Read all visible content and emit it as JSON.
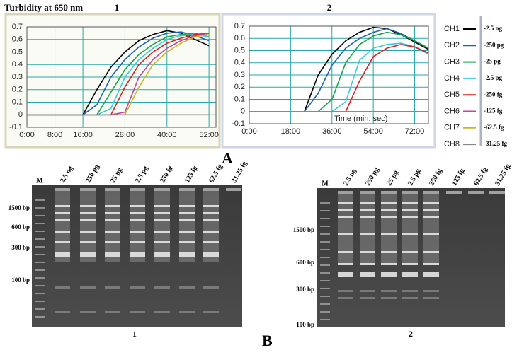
{
  "figure": {
    "heading": "Turbidity at 650 nm",
    "panel_a": "A",
    "panel_b": "B"
  },
  "chart_data": [
    {
      "type": "line",
      "title": "1",
      "grid": true,
      "x": [
        0,
        4,
        8,
        12,
        16,
        20,
        24,
        28,
        32,
        36,
        40,
        44,
        48,
        52
      ],
      "xlim": [
        0,
        54
      ],
      "xticks": [
        {
          "value": 0,
          "label": "0:00"
        },
        {
          "value": 8,
          "label": "8:00"
        },
        {
          "value": 16,
          "label": "16:00"
        },
        {
          "value": 28,
          "label": "28:00"
        },
        {
          "value": 40,
          "label": "40:00"
        },
        {
          "value": 52,
          "label": "52:00"
        }
      ],
      "ylim": [
        -0.1,
        0.7
      ],
      "yticks": [
        -0.1,
        0,
        0.1,
        0.2,
        0.3,
        0.4,
        0.5,
        0.6,
        0.7
      ],
      "series": [
        {
          "color": "#000000",
          "values": [
            0,
            0,
            0,
            0,
            0,
            0.2,
            0.38,
            0.5,
            0.59,
            0.64,
            0.67,
            0.65,
            0.6,
            0.55
          ]
        },
        {
          "color": "#1f5fb0",
          "values": [
            0,
            0,
            0,
            0,
            0,
            0.08,
            0.3,
            0.44,
            0.54,
            0.61,
            0.65,
            0.66,
            0.63,
            0.59
          ]
        },
        {
          "color": "#1aa34a",
          "values": [
            0,
            0,
            0,
            0,
            0,
            0,
            0.18,
            0.36,
            0.48,
            0.56,
            0.62,
            0.64,
            0.65,
            0.62
          ]
        },
        {
          "color": "#3cc8d8",
          "values": [
            0,
            0,
            0,
            0,
            0,
            0,
            0.05,
            0.3,
            0.44,
            0.53,
            0.6,
            0.63,
            0.64,
            0.62
          ]
        },
        {
          "color": "#d42020",
          "values": [
            0,
            0,
            0,
            0,
            0,
            0,
            0,
            0.22,
            0.4,
            0.5,
            0.57,
            0.61,
            0.64,
            0.65
          ]
        },
        {
          "color": "#c0479a",
          "values": [
            0,
            0,
            0,
            0,
            0,
            0,
            0,
            0.02,
            0.3,
            0.44,
            0.53,
            0.59,
            0.63,
            0.65
          ]
        },
        {
          "color": "#c8b820",
          "values": [
            0,
            0,
            0,
            0,
            0,
            0,
            0,
            0,
            0.22,
            0.4,
            0.5,
            0.57,
            0.62,
            0.64
          ]
        },
        {
          "color": "#888888",
          "values": [
            0,
            0,
            0,
            0,
            0,
            0,
            0,
            0,
            0,
            0,
            0,
            0,
            0,
            0
          ]
        }
      ]
    },
    {
      "type": "line",
      "title": "2",
      "annotation": "Time (min: sec)",
      "grid": true,
      "x": [
        0,
        6,
        12,
        18,
        24,
        30,
        36,
        42,
        48,
        54,
        60,
        66,
        72,
        78
      ],
      "xlim": [
        0,
        78
      ],
      "xticks": [
        {
          "value": 0,
          "label": "0:00"
        },
        {
          "value": 18,
          "label": "18:00"
        },
        {
          "value": 36,
          "label": "36:00"
        },
        {
          "value": 54,
          "label": "54:00"
        },
        {
          "value": 72,
          "label": "72:00"
        }
      ],
      "ylim": [
        -0.1,
        0.7
      ],
      "yticks": [
        -0.1,
        0,
        0.1,
        0.2,
        0.3,
        0.4,
        0.5,
        0.6,
        0.7
      ],
      "series": [
        {
          "name": "CH1",
          "label": "-2.5 ng",
          "color": "#000000",
          "values": [
            0,
            0,
            0,
            0,
            0,
            0.3,
            0.47,
            0.58,
            0.65,
            0.69,
            0.68,
            0.63,
            0.57,
            0.51
          ]
        },
        {
          "name": "CH2",
          "label": "-250 pg",
          "color": "#1f5fb0",
          "values": [
            0,
            0,
            0,
            0,
            0,
            0.15,
            0.38,
            0.52,
            0.6,
            0.65,
            0.68,
            0.64,
            0.58,
            0.52
          ]
        },
        {
          "name": "CH3",
          "label": "-25 pg",
          "color": "#1aa34a",
          "values": [
            0,
            0,
            0,
            0,
            0,
            0,
            0.1,
            0.4,
            0.55,
            0.62,
            0.65,
            0.63,
            0.58,
            0.52
          ]
        },
        {
          "name": "CH4",
          "label": "-2.5 pg",
          "color": "#3cc8d8",
          "values": [
            0,
            0,
            0,
            0,
            0,
            0,
            0,
            0.08,
            0.42,
            0.52,
            0.55,
            0.56,
            0.53,
            0.47
          ]
        },
        {
          "name": "CH5",
          "label": "-250 fg",
          "color": "#d42020",
          "values": [
            0,
            0,
            0,
            0,
            0,
            0,
            0,
            0,
            0.25,
            0.45,
            0.52,
            0.55,
            0.53,
            0.48
          ]
        },
        {
          "name": "CH6",
          "label": "-125 fg",
          "color": "#c0479a",
          "values": [
            0,
            0,
            0,
            0,
            0,
            0,
            0,
            0,
            0,
            0,
            0,
            0,
            0,
            0
          ]
        },
        {
          "name": "CH7",
          "label": "-62.5 fg",
          "color": "#c8b820",
          "values": [
            0,
            0,
            0,
            0,
            0,
            0,
            0,
            0,
            0,
            0,
            0,
            0,
            0,
            0
          ]
        },
        {
          "name": "CH8",
          "label": "-31.25 fg",
          "color": "#888888",
          "values": [
            0,
            0,
            0,
            0,
            0,
            0,
            0,
            0,
            0,
            0,
            0,
            0,
            0,
            0
          ]
        }
      ]
    }
  ],
  "gels": [
    {
      "caption": "1",
      "marker": "M",
      "lanes": [
        "2.5 ng",
        "250 pg",
        "25 pg",
        "2.5 pg",
        "250 fg",
        "125 fg",
        "62.5 fg",
        "31.25 fg"
      ],
      "ladder": [
        "1500 bp",
        "600 bp",
        "300 bp",
        "100 bp"
      ]
    },
    {
      "caption": "2",
      "marker": "M",
      "lanes": [
        "2.5 ng",
        "250 pg",
        "25 pg",
        "2.5 pg",
        "250 fg",
        "125 fg",
        "62.5 fg",
        "31.25 fg"
      ],
      "ladder": [
        "1500 bp",
        "600 bp",
        "300 bp",
        "100 bp"
      ]
    }
  ]
}
